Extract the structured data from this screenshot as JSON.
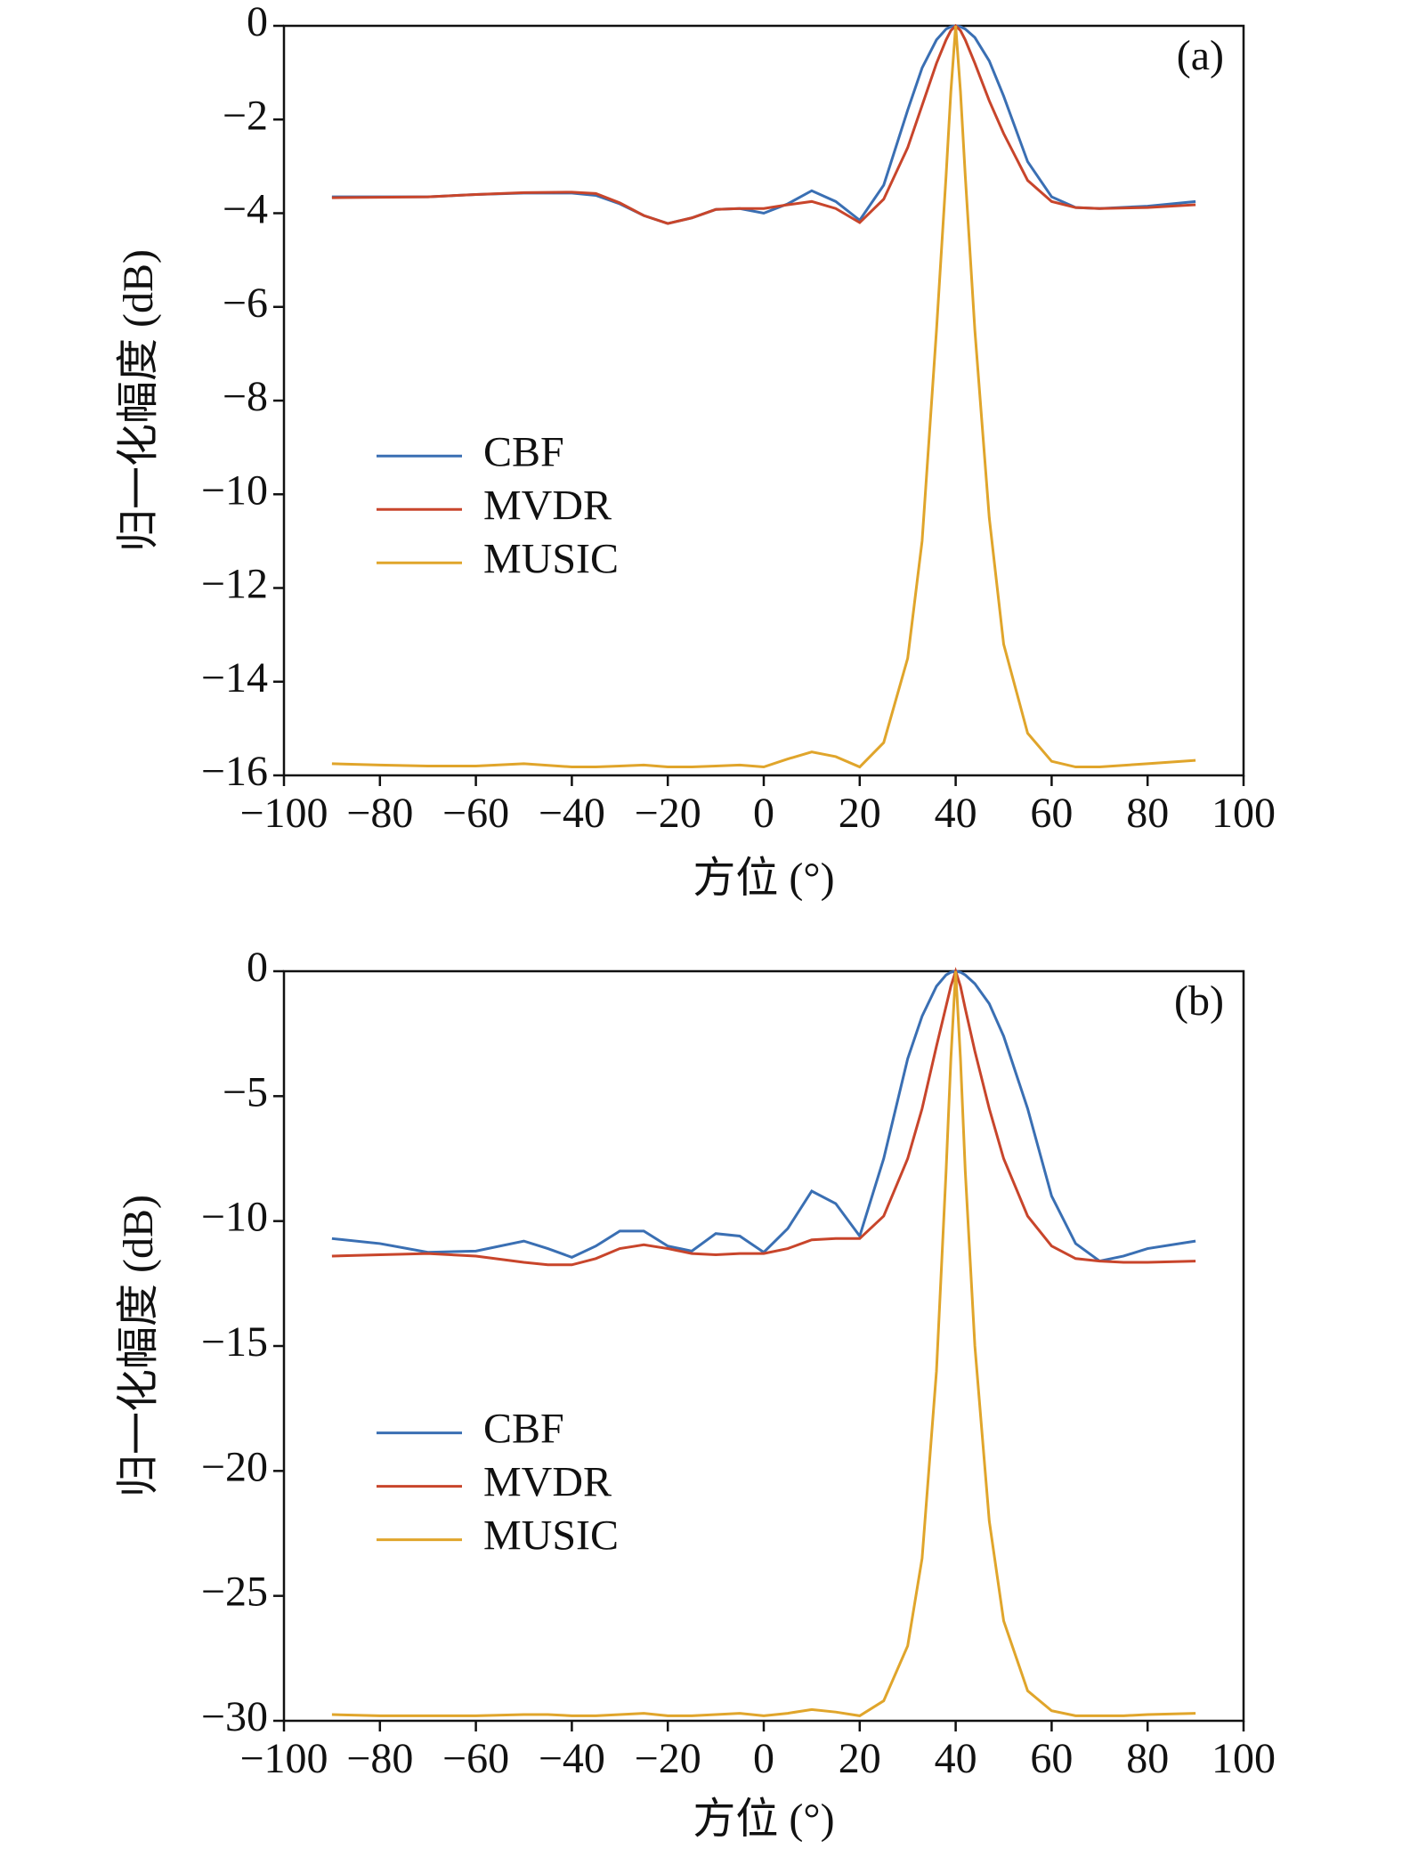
{
  "chart_data": [
    {
      "type": "line",
      "annotation": "(a)",
      "x_label": "方位 (°)",
      "y_label": "归一化幅度 (dB)",
      "x": [
        -90,
        -80,
        -70,
        -60,
        -50,
        -40,
        -35,
        -30,
        -25,
        -20,
        -15,
        -10,
        -5,
        0,
        5,
        10,
        15,
        20,
        25,
        30,
        33,
        36,
        38,
        39,
        40,
        41,
        42,
        44,
        47,
        50,
        55,
        60,
        65,
        70,
        80,
        90
      ],
      "series": [
        {
          "name": "CBF",
          "color": "#3a6fb3",
          "values": [
            -3.65,
            -3.65,
            -3.65,
            -3.6,
            -3.57,
            -3.57,
            -3.62,
            -3.8,
            -4.05,
            -4.22,
            -4.1,
            -3.92,
            -3.9,
            -4.0,
            -3.8,
            -3.52,
            -3.75,
            -4.15,
            -3.4,
            -1.8,
            -0.9,
            -0.3,
            -0.07,
            -0.02,
            0,
            -0.02,
            -0.07,
            -0.25,
            -0.75,
            -1.5,
            -2.9,
            -3.65,
            -3.88,
            -3.9,
            -3.85,
            -3.75
          ]
        },
        {
          "name": "MVDR",
          "color": "#c8452b",
          "values": [
            -3.67,
            -3.66,
            -3.65,
            -3.6,
            -3.56,
            -3.55,
            -3.58,
            -3.78,
            -4.05,
            -4.22,
            -4.1,
            -3.92,
            -3.9,
            -3.9,
            -3.82,
            -3.75,
            -3.9,
            -4.2,
            -3.7,
            -2.6,
            -1.7,
            -0.8,
            -0.3,
            -0.1,
            0,
            -0.1,
            -0.3,
            -0.8,
            -1.6,
            -2.3,
            -3.3,
            -3.75,
            -3.88,
            -3.9,
            -3.88,
            -3.82
          ]
        },
        {
          "name": "MUSIC",
          "color": "#e0a52b",
          "values": [
            -15.75,
            -15.78,
            -15.8,
            -15.8,
            -15.75,
            -15.82,
            -15.82,
            -15.8,
            -15.78,
            -15.82,
            -15.82,
            -15.8,
            -15.78,
            -15.82,
            -15.65,
            -15.5,
            -15.6,
            -15.82,
            -15.3,
            -13.5,
            -11,
            -6.5,
            -3.2,
            -1.4,
            0,
            -1.4,
            -3.2,
            -6.5,
            -10.5,
            -13.2,
            -15.1,
            -15.7,
            -15.82,
            -15.82,
            -15.75,
            -15.68
          ]
        }
      ],
      "xlim": [
        -100,
        100
      ],
      "xticks": [
        {
          "value": -100,
          "label": "−100"
        },
        {
          "value": -80,
          "label": "−80"
        },
        {
          "value": -60,
          "label": "−60"
        },
        {
          "value": -40,
          "label": "−40"
        },
        {
          "value": -20,
          "label": "−20"
        },
        0,
        20,
        40,
        60,
        80,
        100
      ],
      "ylim": [
        -16,
        0
      ],
      "yticks": [
        0,
        {
          "value": -2,
          "label": "−2"
        },
        {
          "value": -4,
          "label": "−4"
        },
        {
          "value": -6,
          "label": "−6"
        },
        {
          "value": -8,
          "label": "−8"
        },
        {
          "value": -10,
          "label": "−10"
        },
        {
          "value": -12,
          "label": "−12"
        },
        {
          "value": -14,
          "label": "−14"
        },
        {
          "value": -16,
          "label": "−16"
        }
      ]
    },
    {
      "type": "line",
      "annotation": "(b)",
      "x_label": "方位 (°)",
      "y_label": "归一化幅度 (dB)",
      "x": [
        -90,
        -80,
        -70,
        -60,
        -50,
        -45,
        -40,
        -35,
        -30,
        -25,
        -20,
        -15,
        -10,
        -5,
        0,
        5,
        10,
        15,
        20,
        25,
        30,
        33,
        36,
        38,
        39,
        40,
        41,
        42,
        44,
        47,
        50,
        55,
        60,
        65,
        70,
        75,
        80,
        90
      ],
      "series": [
        {
          "name": "CBF",
          "color": "#3a6fb3",
          "values": [
            -10.7,
            -10.9,
            -11.25,
            -11.2,
            -10.8,
            -11.1,
            -11.45,
            -11.0,
            -10.4,
            -10.4,
            -11.0,
            -11.2,
            -10.5,
            -10.6,
            -11.25,
            -10.3,
            -8.8,
            -9.3,
            -10.6,
            -7.5,
            -3.5,
            -1.8,
            -0.6,
            -0.15,
            -0.04,
            0,
            -0.04,
            -0.15,
            -0.5,
            -1.3,
            -2.6,
            -5.5,
            -9,
            -10.9,
            -11.6,
            -11.4,
            -11.1,
            -10.8
          ]
        },
        {
          "name": "MVDR",
          "color": "#c8452b",
          "values": [
            -11.4,
            -11.35,
            -11.3,
            -11.4,
            -11.65,
            -11.75,
            -11.75,
            -11.5,
            -11.1,
            -10.95,
            -11.1,
            -11.3,
            -11.35,
            -11.3,
            -11.3,
            -11.1,
            -10.75,
            -10.7,
            -10.7,
            -9.8,
            -7.5,
            -5.5,
            -3,
            -1.4,
            -0.6,
            0,
            -0.6,
            -1.5,
            -3.2,
            -5.5,
            -7.5,
            -9.8,
            -11,
            -11.5,
            -11.6,
            -11.65,
            -11.65,
            -11.6
          ]
        },
        {
          "name": "MUSIC",
          "color": "#e0a52b",
          "values": [
            -29.75,
            -29.8,
            -29.8,
            -29.8,
            -29.75,
            -29.75,
            -29.8,
            -29.8,
            -29.75,
            -29.7,
            -29.8,
            -29.8,
            -29.75,
            -29.7,
            -29.8,
            -29.7,
            -29.55,
            -29.65,
            -29.8,
            -29.2,
            -27,
            -23.5,
            -16,
            -8,
            -3.5,
            0,
            -3.5,
            -8,
            -15,
            -22,
            -26,
            -28.8,
            -29.6,
            -29.8,
            -29.8,
            -29.8,
            -29.75,
            -29.7
          ]
        }
      ],
      "xlim": [
        -100,
        100
      ],
      "xticks": [
        {
          "value": -100,
          "label": "−100"
        },
        {
          "value": -80,
          "label": "−80"
        },
        {
          "value": -60,
          "label": "−60"
        },
        {
          "value": -40,
          "label": "−40"
        },
        {
          "value": -20,
          "label": "−20"
        },
        0,
        20,
        40,
        60,
        80,
        100
      ],
      "ylim": [
        -30,
        0
      ],
      "yticks": [
        0,
        {
          "value": -5,
          "label": "−5"
        },
        {
          "value": -10,
          "label": "−10"
        },
        {
          "value": -15,
          "label": "−15"
        },
        {
          "value": -20,
          "label": "−20"
        },
        {
          "value": -25,
          "label": "−25"
        },
        {
          "value": -30,
          "label": "−30"
        }
      ]
    }
  ]
}
